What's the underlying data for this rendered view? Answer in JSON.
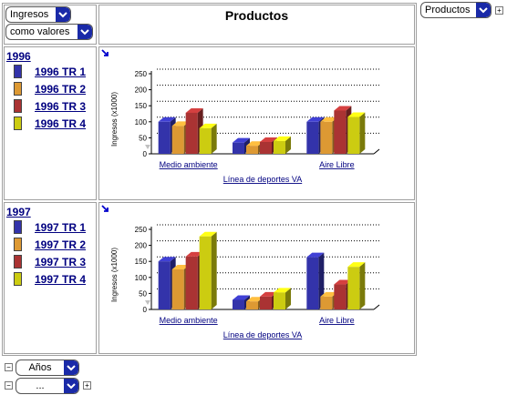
{
  "controls": {
    "measure_label": "Ingresos",
    "display_label": "como valores",
    "column_dim_label": "Productos",
    "row_dim_label": "Años",
    "row_dim2_label": "..."
  },
  "header": {
    "title": "Productos"
  },
  "colors": {
    "q1": "#3333aa",
    "q2": "#dd9933",
    "q3": "#aa3333",
    "q4": "#cccc11",
    "link": "#000080",
    "dropdown_button": "#1a2aa8"
  },
  "rows": [
    {
      "year": "1996",
      "legend": [
        "1996 TR 1",
        "1996 TR 2",
        "1996 TR 3",
        "1996 TR 4"
      ]
    },
    {
      "year": "1997",
      "legend": [
        "1997 TR 1",
        "1997 TR 2",
        "1997 TR 3",
        "1997 TR 4"
      ]
    }
  ],
  "chart_data": [
    {
      "type": "bar",
      "title": "",
      "xlabel": "Línea de deportes VA",
      "ylabel": "Ingresos (x1000)",
      "ylim": [
        0,
        250
      ],
      "yticks": [
        "0",
        "50",
        "100",
        "150",
        "200",
        "250"
      ],
      "categories": [
        "Medio ambiente",
        "",
        "Aire Libre"
      ],
      "series": [
        {
          "name": "1996 TR 1",
          "values": [
            100,
            35,
            100
          ]
        },
        {
          "name": "1996 TR 2",
          "values": [
            87,
            25,
            100
          ]
        },
        {
          "name": "1996 TR 3",
          "values": [
            128,
            37,
            135
          ]
        },
        {
          "name": "1996 TR 4",
          "values": [
            80,
            40,
            115
          ]
        }
      ],
      "grid": true
    },
    {
      "type": "bar",
      "title": "",
      "xlabel": "Línea de deportes VA",
      "ylabel": "Ingresos (x1000)",
      "ylim": [
        0,
        250
      ],
      "yticks": [
        "0",
        "50",
        "100",
        "150",
        "200",
        "250"
      ],
      "categories": [
        "Medio ambiente",
        "",
        "Aire Libre"
      ],
      "series": [
        {
          "name": "1997 TR 1",
          "values": [
            150,
            30,
            163
          ]
        },
        {
          "name": "1997 TR 2",
          "values": [
            125,
            25,
            40
          ]
        },
        {
          "name": "1997 TR 3",
          "values": [
            165,
            40,
            78
          ]
        },
        {
          "name": "1997 TR 4",
          "values": [
            228,
            53,
            133
          ]
        }
      ],
      "grid": true
    }
  ]
}
